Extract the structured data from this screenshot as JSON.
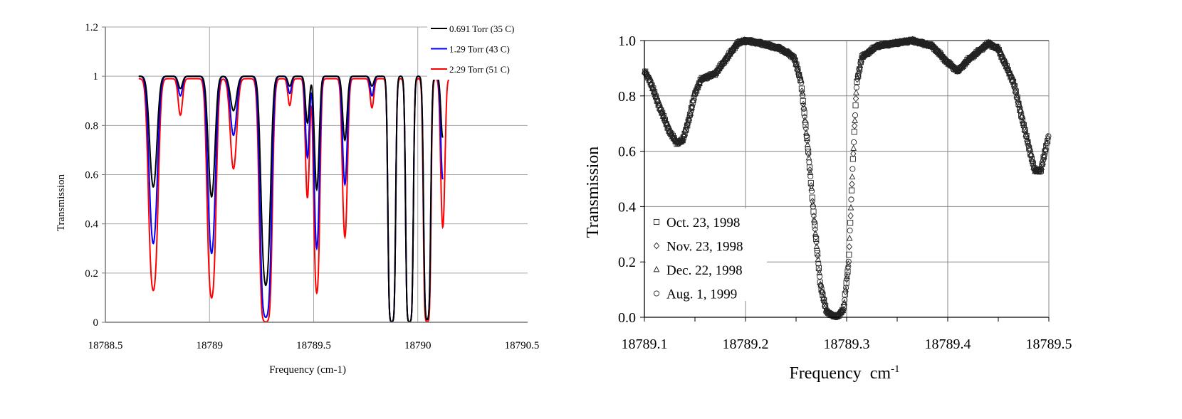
{
  "chart_data": [
    {
      "type": "line",
      "title": "",
      "xlabel": "Frequency (cm-1)",
      "ylabel": "Transmission",
      "xlim": [
        18788.5,
        18790.5
      ],
      "ylim": [
        0,
        1.2
      ],
      "xticks": [
        "18788.5",
        "18789",
        "18789.5",
        "18790",
        "18790.5"
      ],
      "xtick_values": [
        18788.5,
        18789,
        18789.5,
        18790,
        18790.5
      ],
      "yticks": [
        "0",
        "0.2",
        "0.4",
        "0.6",
        "0.8",
        "1",
        "1.2"
      ],
      "ytick_values": [
        0,
        0.2,
        0.4,
        0.6,
        0.8,
        1,
        1.2
      ],
      "grid": true,
      "legend_position": "top-right",
      "series": [
        {
          "name": "0.691 Torr (35 C)",
          "color": "#000000",
          "x_range": [
            18788.66,
            18790.12
          ]
        },
        {
          "name": "1.29 Torr (43 C)",
          "color": "#0000ff",
          "x_range": [
            18788.66,
            18790.12
          ]
        },
        {
          "name": "2.29 Torr (51 C)",
          "color": "#ff0000",
          "x_range": [
            18788.66,
            18790.18
          ]
        }
      ],
      "absorption_lines": [
        {
          "center": 18788.73,
          "width": 0.022,
          "min_transmission": [
            0.55,
            0.32,
            0.13
          ]
        },
        {
          "center": 18788.86,
          "width": 0.014,
          "min_transmission": [
            0.95,
            0.92,
            0.85
          ]
        },
        {
          "center": 18789.01,
          "width": 0.02,
          "min_transmission": [
            0.51,
            0.28,
            0.1
          ]
        },
        {
          "center": 18789.115,
          "width": 0.02,
          "min_transmission": [
            0.86,
            0.76,
            0.63
          ]
        },
        {
          "center": 18789.27,
          "width": 0.022,
          "min_transmission": [
            0.15,
            0.02,
            0.0
          ]
        },
        {
          "center": 18789.385,
          "width": 0.012,
          "min_transmission": [
            0.96,
            0.93,
            0.89
          ]
        },
        {
          "center": 18789.47,
          "width": 0.012,
          "min_transmission": [
            0.81,
            0.67,
            0.51
          ]
        },
        {
          "center": 18789.515,
          "width": 0.014,
          "min_transmission": [
            0.54,
            0.3,
            0.12
          ]
        },
        {
          "center": 18789.65,
          "width": 0.014,
          "min_transmission": [
            0.74,
            0.56,
            0.35
          ]
        },
        {
          "center": 18789.78,
          "width": 0.012,
          "min_transmission": [
            0.96,
            0.92,
            0.88
          ]
        },
        {
          "center": 18789.875,
          "width": 0.013,
          "min_transmission": [
            0.0,
            0.0,
            0.0
          ]
        },
        {
          "center": 18789.96,
          "width": 0.013,
          "min_transmission": [
            0.0,
            0.0,
            0.0
          ]
        },
        {
          "center": 18790.045,
          "width": 0.013,
          "min_transmission": [
            0.01,
            0.01,
            0.0
          ]
        },
        {
          "center": 18790.12,
          "width": 0.012,
          "min_transmission": [
            0.75,
            0.58,
            0.39
          ]
        }
      ]
    },
    {
      "type": "scatter",
      "title": "",
      "xlabel": "Frequency  cm",
      "xlabel_sup": "-1",
      "ylabel": "Transmission",
      "xlim": [
        18789.1,
        18789.5
      ],
      "ylim": [
        0,
        1.0
      ],
      "xticks": [
        "18789.1",
        "18789.2",
        "18789.3",
        "18789.4",
        "18789.5"
      ],
      "xtick_values": [
        18789.1,
        18789.2,
        18789.3,
        18789.4,
        18789.5
      ],
      "yticks": [
        "0.0",
        "0.2",
        "0.4",
        "0.6",
        "0.8",
        "1.0"
      ],
      "ytick_values": [
        0,
        0.2,
        0.4,
        0.6,
        0.8,
        1.0
      ],
      "grid": true,
      "legend_position": "bottom-left",
      "series": [
        {
          "name": "Oct. 23, 1998",
          "marker": "square"
        },
        {
          "name": "Nov. 23, 1998",
          "marker": "diamond"
        },
        {
          "name": "Dec. 22, 1998",
          "marker": "triangle"
        },
        {
          "name": "Aug. 1, 1999",
          "marker": "circle"
        }
      ],
      "profile": [
        [
          18789.1,
          0.89
        ],
        [
          18789.105,
          0.86
        ],
        [
          18789.115,
          0.76
        ],
        [
          18789.125,
          0.67
        ],
        [
          18789.132,
          0.63
        ],
        [
          18789.138,
          0.64
        ],
        [
          18789.145,
          0.73
        ],
        [
          18789.15,
          0.81
        ],
        [
          18789.156,
          0.86
        ],
        [
          18789.17,
          0.88
        ],
        [
          18789.18,
          0.93
        ],
        [
          18789.192,
          0.99
        ],
        [
          18789.2,
          1.0
        ],
        [
          18789.215,
          0.99
        ],
        [
          18789.235,
          0.97
        ],
        [
          18789.248,
          0.94
        ],
        [
          18789.255,
          0.85
        ],
        [
          18789.262,
          0.6
        ],
        [
          18789.268,
          0.35
        ],
        [
          18789.274,
          0.12
        ],
        [
          18789.28,
          0.02
        ],
        [
          18789.29,
          0.0
        ],
        [
          18789.297,
          0.03
        ],
        [
          18789.302,
          0.2
        ],
        [
          18789.306,
          0.55
        ],
        [
          18789.31,
          0.85
        ],
        [
          18789.315,
          0.94
        ],
        [
          18789.33,
          0.98
        ],
        [
          18789.365,
          1.0
        ],
        [
          18789.385,
          0.98
        ],
        [
          18789.4,
          0.92
        ],
        [
          18789.41,
          0.89
        ],
        [
          18789.42,
          0.93
        ],
        [
          18789.44,
          0.99
        ],
        [
          18789.45,
          0.97
        ],
        [
          18789.465,
          0.85
        ],
        [
          18789.478,
          0.65
        ],
        [
          18789.486,
          0.53
        ],
        [
          18789.492,
          0.53
        ],
        [
          18789.5,
          0.66
        ]
      ]
    }
  ]
}
